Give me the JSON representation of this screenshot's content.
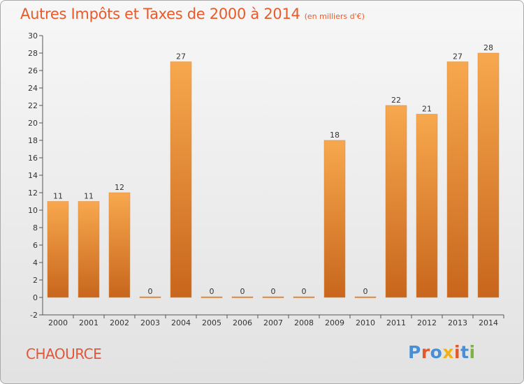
{
  "title": "Autres Impôts et Taxes de 2000 à 2014",
  "subtitle": "(en milliers d'€)",
  "place": "CHAOURCE",
  "logo": {
    "text": "Proxiti",
    "colors": [
      "#4a8fd6",
      "#e35a2a",
      "#4a8fd6",
      "#f0b21a",
      "#e35a2a",
      "#4a8fd6",
      "#7cb342"
    ]
  },
  "colors": {
    "bar_top": "#f7a84e",
    "bar_bottom": "#c8661c",
    "axis": "#555555",
    "text": "#333333",
    "title": "#e85a2a"
  },
  "chart_data": {
    "type": "bar",
    "categories": [
      "2000",
      "2001",
      "2002",
      "2003",
      "2004",
      "2005",
      "2006",
      "2007",
      "2008",
      "2009",
      "2010",
      "2011",
      "2012",
      "2013",
      "2014"
    ],
    "values": [
      11,
      11,
      12,
      0,
      27,
      0,
      0,
      0,
      0,
      18,
      0,
      22,
      21,
      27,
      28
    ],
    "ylim": [
      -2,
      30
    ],
    "yticks": [
      -2,
      0,
      2,
      4,
      6,
      8,
      10,
      12,
      14,
      16,
      18,
      20,
      22,
      24,
      26,
      28,
      30
    ],
    "grid": false,
    "legend": "none"
  }
}
